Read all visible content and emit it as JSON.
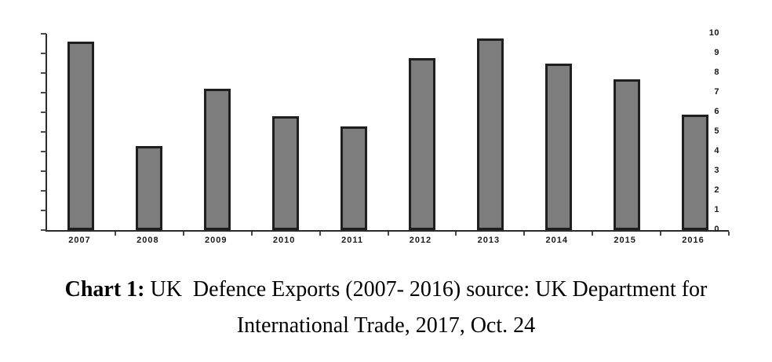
{
  "figure": {
    "caption": {
      "label": "Chart 1:",
      "line1_rest": " UK  Defence Exports (2007- 2016) source: UK Department for",
      "line2": "International Trade, 2017, Oct. 24"
    }
  },
  "chart_data": {
    "type": "bar",
    "title": "",
    "xlabel": "",
    "ylabel": "",
    "categories": [
      "2007",
      "2008",
      "2009",
      "2010",
      "2011",
      "2012",
      "2013",
      "2014",
      "2015",
      "2016"
    ],
    "values": [
      9.6,
      4.3,
      7.2,
      5.8,
      5.3,
      8.75,
      9.75,
      8.5,
      7.7,
      5.9
    ],
    "ylim": [
      0,
      10
    ],
    "yticks": [
      0,
      1,
      2,
      3,
      4,
      5,
      6,
      7,
      8,
      9,
      10
    ],
    "grid": false,
    "legend_position": "none",
    "bar_fill_color": "#7d7d7d",
    "bar_border_color": "#1f1f1f",
    "axis_color": "#2b2b2b",
    "text_color": "#1a1a1a"
  }
}
